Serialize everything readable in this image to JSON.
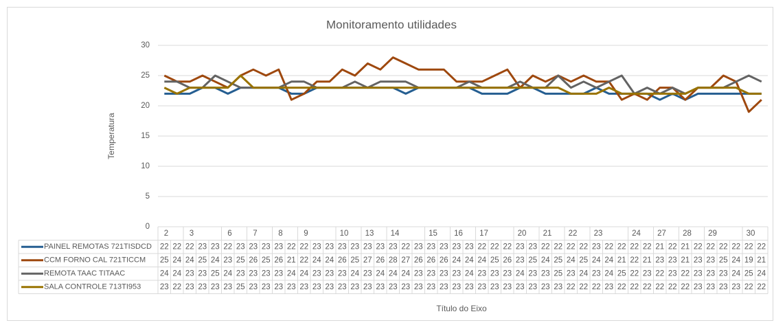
{
  "chart_data": {
    "type": "line",
    "title": "Monitoramento utilidades",
    "y_label": "Temperatura",
    "x_label": "Título do Eixo",
    "categories": [
      "2",
      null,
      "3",
      null,
      null,
      "6",
      null,
      "7",
      null,
      "8",
      null,
      "9",
      null,
      null,
      "10",
      null,
      "13",
      null,
      "14",
      null,
      null,
      "15",
      null,
      "16",
      null,
      "17",
      null,
      null,
      "20",
      null,
      "21",
      null,
      "22",
      null,
      "23",
      null,
      null,
      "24",
      null,
      "27",
      null,
      "28",
      null,
      "29",
      null,
      null,
      "30",
      null
    ],
    "series": [
      {
        "name": "PAINEL REMOTAS 721TISDCD",
        "color": "#255e91",
        "values": [
          22,
          22,
          22,
          23,
          23,
          22,
          23,
          23,
          23,
          23,
          22,
          22,
          23,
          23,
          23,
          23,
          23,
          23,
          23,
          22,
          23,
          23,
          23,
          23,
          23,
          22,
          22,
          22,
          23,
          23,
          22,
          22,
          22,
          22,
          23,
          22,
          22,
          22,
          22,
          21,
          22,
          21,
          22,
          22,
          22,
          22,
          22,
          22
        ]
      },
      {
        "name": "CCM FORNO CAL 721TICCM",
        "color": "#9e480e",
        "values": [
          25,
          24,
          24,
          25,
          24,
          23,
          25,
          26,
          25,
          26,
          21,
          22,
          24,
          24,
          26,
          25,
          27,
          26,
          28,
          27,
          26,
          26,
          26,
          24,
          24,
          24,
          25,
          26,
          23,
          25,
          24,
          25,
          24,
          25,
          24,
          24,
          21,
          22,
          21,
          23,
          23,
          21,
          23,
          23,
          25,
          24,
          19,
          21
        ]
      },
      {
        "name": "REMOTA TAAC TITAAC",
        "color": "#636363",
        "values": [
          24,
          24,
          23,
          23,
          25,
          24,
          23,
          23,
          23,
          23,
          24,
          24,
          23,
          23,
          23,
          24,
          23,
          24,
          24,
          24,
          23,
          23,
          23,
          23,
          24,
          23,
          23,
          23,
          24,
          23,
          23,
          25,
          23,
          24,
          23,
          24,
          25,
          22,
          23,
          22,
          23,
          22,
          23,
          23,
          23,
          24,
          25,
          24
        ]
      },
      {
        "name": "SALA CONTROLE 713TI953",
        "color": "#997300",
        "values": [
          23,
          22,
          23,
          23,
          23,
          23,
          25,
          23,
          23,
          23,
          23,
          23,
          23,
          23,
          23,
          23,
          23,
          23,
          23,
          23,
          23,
          23,
          23,
          23,
          23,
          23,
          23,
          23,
          23,
          23,
          23,
          23,
          22,
          22,
          22,
          23,
          22,
          22,
          22,
          22,
          22,
          22,
          23,
          23,
          23,
          23,
          22,
          22
        ]
      }
    ],
    "ylim": [
      0,
      30
    ],
    "yticks": [
      0,
      5,
      10,
      15,
      20,
      25,
      30
    ],
    "grid": true
  }
}
